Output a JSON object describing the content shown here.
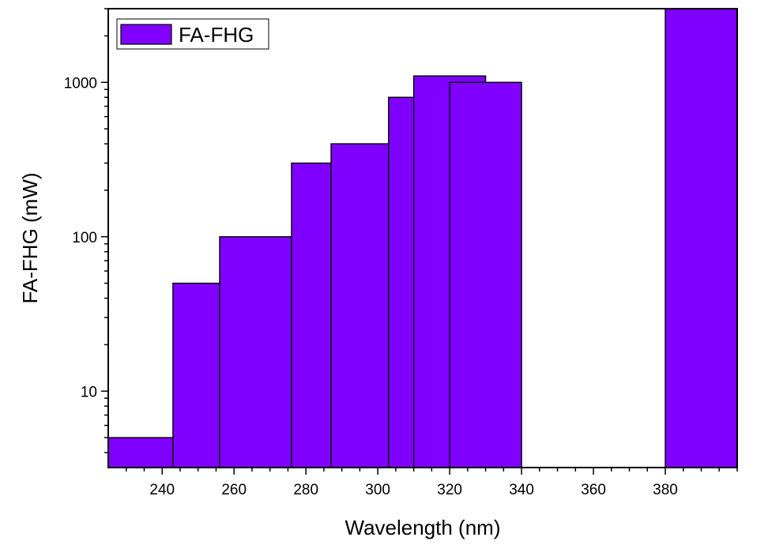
{
  "chart_data": {
    "type": "bar",
    "title": "",
    "xlabel": "Wavelength (nm)",
    "ylabel": "FA-FHG (mW)",
    "x_scale": "linear",
    "y_scale": "log",
    "xlim": [
      225,
      400
    ],
    "ylim": [
      3.2,
      3000
    ],
    "grid": false,
    "legend_position": "top-left",
    "bar_color": "#7f00ff",
    "x_ticks": [
      240,
      260,
      280,
      300,
      320,
      340,
      360,
      380
    ],
    "x_tick_labels": [
      "240",
      "260",
      "280",
      "300",
      "320",
      "340",
      "360",
      "380"
    ],
    "y_ticks": [
      10,
      100,
      1000
    ],
    "y_tick_labels": [
      "10",
      "100",
      "1000"
    ],
    "series": [
      {
        "name": "FA-FHG",
        "bars": [
          {
            "x_start": 225,
            "x_end": 243,
            "value": 5
          },
          {
            "x_start": 243,
            "x_end": 256,
            "value": 50
          },
          {
            "x_start": 256,
            "x_end": 276,
            "value": 100
          },
          {
            "x_start": 276,
            "x_end": 287,
            "value": 300
          },
          {
            "x_start": 287,
            "x_end": 303,
            "value": 400
          },
          {
            "x_start": 303,
            "x_end": 310,
            "value": 800
          },
          {
            "x_start": 310,
            "x_end": 330,
            "value": 1100
          },
          {
            "x_start": 320,
            "x_end": 340,
            "value": 1000
          },
          {
            "x_start": 380,
            "x_end": 400,
            "value": 3000
          }
        ]
      }
    ]
  }
}
